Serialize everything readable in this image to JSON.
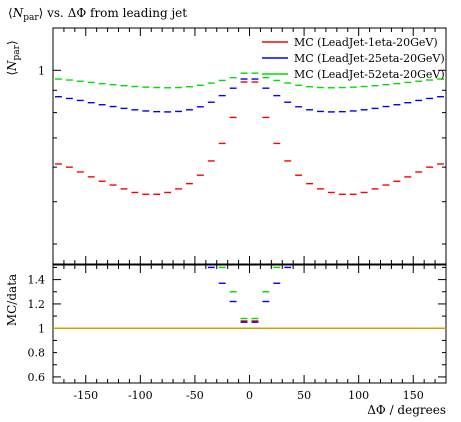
{
  "chart_data": [
    {
      "type": "scatter",
      "panel": "main",
      "title": "⟨N_par⟩ vs. ΔΦ from leading jet",
      "title_parts": {
        "pre": "⟨",
        "var": "N",
        "sub": "par",
        "post": "⟩ vs. ΔΦ from leading jet"
      },
      "ylabel": "⟨N_par⟩",
      "ylabel_parts": {
        "pre": "⟨",
        "var": "N",
        "sub": "par",
        "post": "⟩"
      },
      "xlabel": "",
      "xlim": [
        -180,
        180
      ],
      "ylim": [
        0.36,
        1.25
      ],
      "yscale": "log",
      "ytick_labels": [
        {
          "value": 1,
          "label": "1"
        }
      ],
      "grid": false,
      "legend_position": "top-right",
      "series": [
        {
          "name": "MC (LeadJet-1eta-20GeV)",
          "color": "#ff0000",
          "x": [
            -175,
            -165,
            -155,
            -145,
            -135,
            -125,
            -115,
            -105,
            -95,
            -85,
            -75,
            -65,
            -55,
            -45,
            -35,
            -25,
            -15,
            -5,
            5,
            15,
            25,
            35,
            45,
            55,
            65,
            75,
            85,
            95,
            105,
            115,
            125,
            135,
            145,
            155,
            165,
            175
          ],
          "values": [
            0.61,
            0.6,
            0.585,
            0.57,
            0.557,
            0.546,
            0.535,
            0.525,
            0.52,
            0.52,
            0.525,
            0.535,
            0.55,
            0.575,
            0.62,
            0.68,
            0.78,
            0.94,
            0.94,
            0.78,
            0.68,
            0.62,
            0.575,
            0.55,
            0.535,
            0.525,
            0.52,
            0.52,
            0.525,
            0.535,
            0.546,
            0.557,
            0.57,
            0.585,
            0.6,
            0.61
          ]
        },
        {
          "name": "MC (LeadJet-25eta-20GeV)",
          "color": "#0000ff",
          "x": [
            -175,
            -165,
            -155,
            -145,
            -135,
            -125,
            -115,
            -105,
            -95,
            -85,
            -75,
            -65,
            -55,
            -45,
            -35,
            -25,
            -15,
            -5,
            5,
            15,
            25,
            35,
            45,
            55,
            65,
            75,
            85,
            95,
            105,
            115,
            125,
            135,
            145,
            155,
            165,
            175
          ],
          "values": [
            0.87,
            0.862,
            0.853,
            0.843,
            0.834,
            0.826,
            0.818,
            0.812,
            0.807,
            0.804,
            0.803,
            0.805,
            0.812,
            0.825,
            0.845,
            0.875,
            0.91,
            0.955,
            0.955,
            0.91,
            0.875,
            0.845,
            0.825,
            0.812,
            0.805,
            0.803,
            0.804,
            0.807,
            0.812,
            0.818,
            0.826,
            0.834,
            0.843,
            0.853,
            0.862,
            0.87
          ]
        },
        {
          "name": "MC (LeadJet-52eta-20GeV)",
          "color": "#00dd00",
          "x": [
            -175,
            -165,
            -155,
            -145,
            -135,
            -125,
            -115,
            -105,
            -95,
            -85,
            -75,
            -65,
            -55,
            -45,
            -35,
            -25,
            -15,
            -5,
            5,
            15,
            25,
            35,
            45,
            55,
            65,
            75,
            85,
            95,
            105,
            115,
            125,
            135,
            145,
            155,
            165,
            175
          ],
          "values": [
            0.955,
            0.95,
            0.944,
            0.938,
            0.932,
            0.927,
            0.922,
            0.918,
            0.915,
            0.913,
            0.912,
            0.913,
            0.917,
            0.924,
            0.935,
            0.948,
            0.962,
            0.985,
            0.985,
            0.962,
            0.948,
            0.935,
            0.924,
            0.917,
            0.913,
            0.912,
            0.913,
            0.915,
            0.918,
            0.922,
            0.927,
            0.932,
            0.938,
            0.944,
            0.95,
            0.955
          ]
        }
      ]
    },
    {
      "type": "scatter",
      "panel": "ratio",
      "ylabel": "MC/data",
      "xlabel": "ΔΦ / degrees",
      "xlim": [
        -180,
        180
      ],
      "ylim": [
        0.55,
        1.52
      ],
      "xtick_labels": [
        {
          "value": -150,
          "label": "-150"
        },
        {
          "value": -100,
          "label": "-100"
        },
        {
          "value": -50,
          "label": "-50"
        },
        {
          "value": 0,
          "label": "0"
        },
        {
          "value": 50,
          "label": "50"
        },
        {
          "value": 100,
          "label": "100"
        },
        {
          "value": 150,
          "label": "150"
        }
      ],
      "ytick_labels": [
        {
          "value": 0.6,
          "label": "0.6"
        },
        {
          "value": 0.8,
          "label": "0.8"
        },
        {
          "value": 1,
          "label": "1"
        },
        {
          "value": 1.2,
          "label": "1.2"
        },
        {
          "value": 1.4,
          "label": "1.4"
        }
      ],
      "grid": false,
      "reference_line": {
        "y": 1.0,
        "color": "#c8a800"
      },
      "series": [
        {
          "name": "MC (LeadJet-1eta-20GeV)",
          "color": "#ff0000",
          "x": [
            -5,
            5
          ],
          "values": [
            1.06,
            1.06
          ]
        },
        {
          "name": "MC (LeadJet-25eta-20GeV)",
          "color": "#0000ff",
          "x": [
            -35,
            -25,
            -15,
            -5,
            5,
            15,
            25,
            35
          ],
          "values": [
            1.5,
            1.37,
            1.22,
            1.05,
            1.05,
            1.22,
            1.37,
            1.5
          ]
        },
        {
          "name": "MC (LeadJet-52eta-20GeV)",
          "color": "#00dd00",
          "x": [
            -25,
            -15,
            -5,
            5,
            15,
            25
          ],
          "values": [
            1.5,
            1.3,
            1.08,
            1.08,
            1.3,
            1.5
          ]
        }
      ]
    }
  ]
}
